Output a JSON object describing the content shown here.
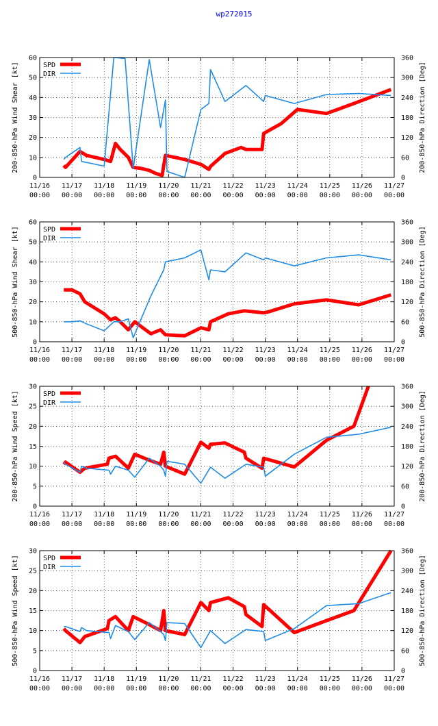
{
  "page_title": "wp272015",
  "colors": {
    "spd": "#ff0000",
    "dir": "#1e8ce6",
    "title": "#0000ff",
    "axis": "#000000"
  },
  "x_ticks": [
    [
      "11/16",
      "00:00"
    ],
    [
      "11/17",
      "00:00"
    ],
    [
      "11/18",
      "00:00"
    ],
    [
      "11/19",
      "00:00"
    ],
    [
      "11/20",
      "00:00"
    ],
    [
      "11/21",
      "00:00"
    ],
    [
      "11/22",
      "00:00"
    ],
    [
      "11/23",
      "00:00"
    ],
    [
      "11/24",
      "00:00"
    ],
    [
      "11/25",
      "00:00"
    ],
    [
      "11/26",
      "00:00"
    ],
    [
      "11/27",
      "00:00"
    ]
  ],
  "chart_data": [
    {
      "type": "line",
      "ylabel": "200-850-hPa Wind Shear [kt]",
      "y2label": "200-850-hPa Direction [Deg]",
      "xlim": [
        0,
        11
      ],
      "ylim": [
        0,
        60
      ],
      "y2lim": [
        0,
        360
      ],
      "yticks": [
        0,
        10,
        20,
        30,
        40,
        50,
        60
      ],
      "y2ticks": [
        0,
        60,
        120,
        180,
        240,
        300,
        360
      ],
      "legend": [
        "SPD",
        "DIR"
      ],
      "series": [
        {
          "name": "SPD",
          "axis": "left",
          "points": [
            [
              0.75,
              6
            ],
            [
              0.8,
              5
            ],
            [
              1.25,
              13
            ],
            [
              1.45,
              11
            ],
            [
              2.0,
              9
            ],
            [
              2.2,
              8
            ],
            [
              2.35,
              17
            ],
            [
              2.5,
              14
            ],
            [
              2.75,
              10
            ],
            [
              2.9,
              5
            ],
            [
              3.15,
              4.5
            ],
            [
              3.4,
              3.5
            ],
            [
              3.6,
              2
            ],
            [
              3.8,
              1
            ],
            [
              3.9,
              11
            ],
            [
              4.5,
              9
            ],
            [
              5.0,
              6.5
            ],
            [
              5.25,
              4
            ],
            [
              5.3,
              5.5
            ],
            [
              5.75,
              12
            ],
            [
              6.25,
              15
            ],
            [
              6.4,
              14
            ],
            [
              6.9,
              14
            ],
            [
              6.95,
              22
            ],
            [
              7.5,
              27
            ],
            [
              8.0,
              34
            ],
            [
              8.9,
              32
            ],
            [
              9.75,
              37
            ],
            [
              10.9,
              44
            ]
          ]
        },
        {
          "name": "DIR",
          "axis": "right",
          "points": [
            [
              0.75,
              54
            ],
            [
              0.8,
              60
            ],
            [
              1.25,
              90
            ],
            [
              1.3,
              48
            ],
            [
              2.0,
              34
            ],
            [
              2.3,
              360
            ],
            [
              2.65,
              357
            ],
            [
              2.9,
              26
            ],
            [
              3.4,
              354
            ],
            [
              3.75,
              150
            ],
            [
              3.9,
              232
            ],
            [
              3.95,
              18
            ],
            [
              4.5,
              0
            ],
            [
              5.0,
              204
            ],
            [
              5.25,
              222
            ],
            [
              5.3,
              324
            ],
            [
              5.75,
              228
            ],
            [
              6.4,
              276
            ],
            [
              6.95,
              228
            ],
            [
              7.0,
              246
            ],
            [
              7.9,
              222
            ],
            [
              8.9,
              249
            ],
            [
              9.9,
              252
            ],
            [
              10.9,
              246
            ]
          ]
        }
      ]
    },
    {
      "type": "line",
      "ylabel": "500-850-hPa Wind Shear [kt]",
      "y2label": "500-850-hPa Direction [Deg]",
      "xlim": [
        0,
        11
      ],
      "ylim": [
        0,
        60
      ],
      "y2lim": [
        0,
        360
      ],
      "yticks": [
        0,
        10,
        20,
        30,
        40,
        50,
        60
      ],
      "y2ticks": [
        0,
        60,
        120,
        180,
        240,
        300,
        360
      ],
      "legend": [
        "SPD",
        "DIR"
      ],
      "series": [
        {
          "name": "SPD",
          "axis": "left",
          "points": [
            [
              0.75,
              26
            ],
            [
              1.0,
              26
            ],
            [
              1.25,
              24
            ],
            [
              1.4,
              20
            ],
            [
              2.0,
              14
            ],
            [
              2.2,
              11
            ],
            [
              2.35,
              12
            ],
            [
              2.5,
              10
            ],
            [
              2.75,
              6
            ],
            [
              2.95,
              10
            ],
            [
              3.2,
              7
            ],
            [
              3.45,
              4
            ],
            [
              3.75,
              6
            ],
            [
              3.9,
              3.5
            ],
            [
              4.5,
              3
            ],
            [
              5.0,
              7
            ],
            [
              5.25,
              6
            ],
            [
              5.3,
              10
            ],
            [
              5.85,
              14
            ],
            [
              6.35,
              15.5
            ],
            [
              6.95,
              14.5
            ],
            [
              7.1,
              15
            ],
            [
              7.9,
              19
            ],
            [
              8.9,
              21
            ],
            [
              9.9,
              18.5
            ],
            [
              10.9,
              23.5
            ]
          ]
        },
        {
          "name": "DIR",
          "axis": "right",
          "points": [
            [
              0.75,
              60
            ],
            [
              1.0,
              60
            ],
            [
              1.25,
              63
            ],
            [
              1.45,
              54
            ],
            [
              2.0,
              33
            ],
            [
              2.3,
              60
            ],
            [
              2.5,
              60
            ],
            [
              2.75,
              69
            ],
            [
              2.9,
              12
            ],
            [
              3.45,
              138
            ],
            [
              3.85,
              216
            ],
            [
              3.9,
              240
            ],
            [
              4.5,
              252
            ],
            [
              5.0,
              276
            ],
            [
              5.25,
              186
            ],
            [
              5.3,
              216
            ],
            [
              5.75,
              210
            ],
            [
              6.4,
              267
            ],
            [
              6.95,
              246
            ],
            [
              7.0,
              252
            ],
            [
              7.9,
              228
            ],
            [
              8.9,
              252
            ],
            [
              9.9,
              261
            ],
            [
              10.9,
              246
            ]
          ]
        }
      ]
    },
    {
      "type": "line",
      "ylabel": "200-850-hPa Wind Speed [kt]",
      "y2label": "200-850-hPa Direction [Deg]",
      "xlim": [
        0,
        11
      ],
      "ylim": [
        0,
        30
      ],
      "y2lim": [
        0,
        360
      ],
      "yticks": [
        0,
        5,
        10,
        15,
        20,
        25,
        30
      ],
      "y2ticks": [
        0,
        60,
        120,
        180,
        240,
        300,
        360
      ],
      "legend": [
        "SPD",
        "DIR"
      ],
      "series": [
        {
          "name": "SPD",
          "axis": "left",
          "points": [
            [
              0.75,
              10.5
            ],
            [
              0.8,
              11
            ],
            [
              1.25,
              8.5
            ],
            [
              1.4,
              9.5
            ],
            [
              2.1,
              10.5
            ],
            [
              2.15,
              12
            ],
            [
              2.35,
              12.5
            ],
            [
              2.75,
              9.5
            ],
            [
              2.95,
              13
            ],
            [
              3.4,
              11.5
            ],
            [
              3.75,
              10.5
            ],
            [
              3.85,
              13.5
            ],
            [
              3.9,
              10
            ],
            [
              4.5,
              8
            ],
            [
              5.0,
              16
            ],
            [
              5.25,
              14.5
            ],
            [
              5.3,
              15.5
            ],
            [
              5.75,
              15.8
            ],
            [
              6.35,
              13.5
            ],
            [
              6.4,
              12
            ],
            [
              6.9,
              9.5
            ],
            [
              6.95,
              12
            ],
            [
              7.9,
              9.8
            ],
            [
              8.9,
              16.5
            ],
            [
              9.75,
              20
            ],
            [
              10.2,
              30
            ]
          ]
        },
        {
          "name": "DIR",
          "axis": "right",
          "points": [
            [
              0.75,
              132
            ],
            [
              0.8,
              126
            ],
            [
              1.25,
              102
            ],
            [
              1.3,
              120
            ],
            [
              1.45,
              114
            ],
            [
              2.15,
              108
            ],
            [
              2.2,
              96
            ],
            [
              2.35,
              120
            ],
            [
              2.75,
              108
            ],
            [
              2.95,
              87
            ],
            [
              3.4,
              144
            ],
            [
              3.75,
              120
            ],
            [
              3.85,
              108
            ],
            [
              3.9,
              90
            ],
            [
              3.95,
              135
            ],
            [
              4.5,
              126
            ],
            [
              5.0,
              69
            ],
            [
              5.3,
              117
            ],
            [
              5.75,
              84
            ],
            [
              6.4,
              126
            ],
            [
              6.95,
              117
            ],
            [
              7.0,
              90
            ],
            [
              7.9,
              156
            ],
            [
              8.9,
              207
            ],
            [
              9.9,
              216
            ],
            [
              10.9,
              237
            ]
          ]
        }
      ]
    },
    {
      "type": "line",
      "ylabel": "500-850-hPa Wind Speed [kt]",
      "y2label": "500-850-hPa Direction [Deg]",
      "xlim": [
        0,
        11
      ],
      "ylim": [
        0,
        30
      ],
      "y2lim": [
        0,
        360
      ],
      "yticks": [
        0,
        5,
        10,
        15,
        20,
        25,
        30
      ],
      "y2ticks": [
        0,
        60,
        120,
        180,
        240,
        300,
        360
      ],
      "legend": [
        "SPD",
        "DIR"
      ],
      "series": [
        {
          "name": "SPD",
          "axis": "left",
          "points": [
            [
              0.75,
              10.5
            ],
            [
              0.8,
              10
            ],
            [
              1.25,
              7
            ],
            [
              1.4,
              8.5
            ],
            [
              2.1,
              10.5
            ],
            [
              2.15,
              12.5
            ],
            [
              2.35,
              13.5
            ],
            [
              2.75,
              10
            ],
            [
              2.9,
              13.5
            ],
            [
              3.4,
              11.5
            ],
            [
              3.75,
              10
            ],
            [
              3.85,
              15
            ],
            [
              3.9,
              10
            ],
            [
              4.5,
              9
            ],
            [
              5.0,
              17
            ],
            [
              5.25,
              15
            ],
            [
              5.3,
              17
            ],
            [
              5.85,
              18.2
            ],
            [
              6.35,
              16
            ],
            [
              6.4,
              14
            ],
            [
              6.9,
              11
            ],
            [
              6.95,
              16.5
            ],
            [
              7.9,
              9.5
            ],
            [
              8.9,
              12.5
            ],
            [
              9.75,
              15
            ],
            [
              10.9,
              30
            ]
          ]
        },
        {
          "name": "DIR",
          "axis": "right",
          "points": [
            [
              0.75,
              132
            ],
            [
              0.8,
              132
            ],
            [
              1.25,
              117
            ],
            [
              1.3,
              129
            ],
            [
              1.45,
              120
            ],
            [
              2.15,
              114
            ],
            [
              2.2,
              96
            ],
            [
              2.35,
              135
            ],
            [
              2.75,
              117
            ],
            [
              2.95,
              93
            ],
            [
              3.4,
              144
            ],
            [
              3.75,
              117
            ],
            [
              3.85,
              108
            ],
            [
              3.9,
              90
            ],
            [
              3.95,
              144
            ],
            [
              4.5,
              141
            ],
            [
              5.0,
              69
            ],
            [
              5.3,
              120
            ],
            [
              5.75,
              81
            ],
            [
              6.4,
              123
            ],
            [
              6.95,
              117
            ],
            [
              7.0,
              90
            ],
            [
              7.9,
              126
            ],
            [
              8.9,
              195
            ],
            [
              9.9,
              201
            ],
            [
              10.9,
              234
            ]
          ]
        }
      ]
    }
  ]
}
